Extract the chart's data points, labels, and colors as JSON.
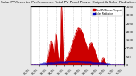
{
  "title": "Solar PV/Inverter Performance Total PV Panel Power Output & Solar Radiation",
  "bg_color": "#e8e8e8",
  "plot_bg": "#ffffff",
  "grid_color": "#aaaaaa",
  "red_color": "#cc0000",
  "blue_color": "#0000cc",
  "num_points": 350,
  "ylim_max": 3500,
  "title_fontsize": 3.2,
  "tick_fontsize": 2.5,
  "legend_fontsize": 2.2
}
